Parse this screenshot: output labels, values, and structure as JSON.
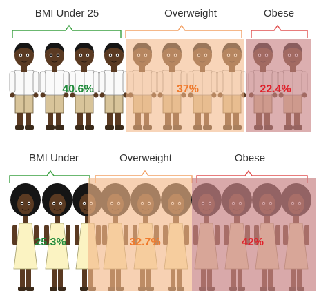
{
  "chart_data": [
    {
      "type": "pictograph",
      "series": [
        {
          "name": "BMI Under 25",
          "value": 40.6,
          "value_label": "40.6%",
          "color": "#1f8a3a",
          "figures": 4
        },
        {
          "name": "Overweight",
          "value": 37,
          "value_label": "37%",
          "color": "#f07a2c",
          "figures": 4
        },
        {
          "name": "Obese",
          "value": 22.4,
          "value_label": "22.4%",
          "color": "#e0202a",
          "figures": 2
        }
      ]
    },
    {
      "type": "pictograph",
      "series": [
        {
          "name": "BMI Under",
          "value": 25.3,
          "value_label": "25.3%",
          "color": "#1f8a3a",
          "figures": 3
        },
        {
          "name": "Overweight",
          "value": 32.7,
          "value_label": "32.7%",
          "color": "#f07a2c",
          "figures": 3
        },
        {
          "name": "Obese",
          "value": 42,
          "value_label": "42%",
          "color": "#e0202a",
          "figures": 4
        }
      ]
    }
  ],
  "colors": {
    "bracket_green": "#3aa040",
    "bracket_orange": "#f2a064",
    "bracket_red": "#e05050",
    "skin_dark": "#5a3a22",
    "hair_dark": "#151515",
    "shirt_white": "#fafafa",
    "pants_khaki": "#d8c49a",
    "dress_cream": "#fbf3c2",
    "tint_orange": "#f3b98a",
    "tint_red": "#c98486"
  }
}
